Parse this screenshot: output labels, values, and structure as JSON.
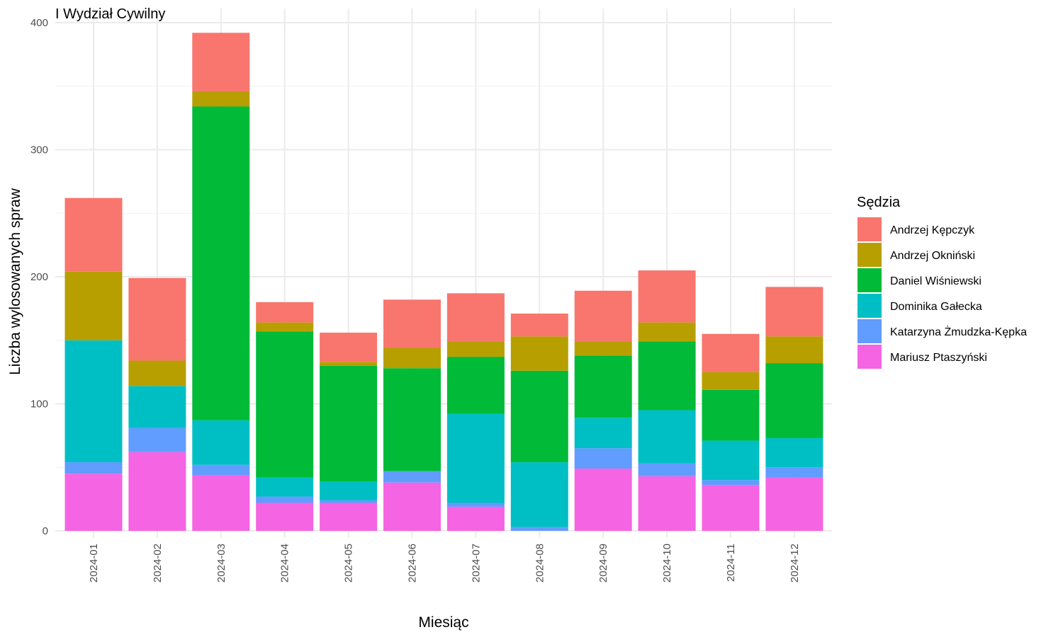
{
  "chart_data": {
    "type": "bar",
    "stacked": true,
    "title": "I Wydział Cywilny",
    "xlabel": "Miesiąc",
    "ylabel": "Liczba wylosowanych spraw",
    "ylim": [
      0,
      400
    ],
    "yticks": [
      0,
      100,
      200,
      300,
      400
    ],
    "grid": true,
    "legend_title": "Sędzia",
    "legend_position": "right",
    "categories": [
      "2024-01",
      "2024-02",
      "2024-03",
      "2024-04",
      "2024-05",
      "2024-06",
      "2024-07",
      "2024-08",
      "2024-09",
      "2024-10",
      "2024-11",
      "2024-12"
    ],
    "series": [
      {
        "name": "Mariusz Ptaszyński",
        "color": "#F564E3",
        "values": [
          45,
          62,
          44,
          22,
          22,
          38,
          19,
          0,
          49,
          43,
          36,
          42
        ]
      },
      {
        "name": "Katarzyna Żmudzka-Kępka",
        "color": "#619CFF",
        "values": [
          9,
          19,
          8,
          5,
          2,
          9,
          3,
          3,
          16,
          10,
          4,
          8
        ]
      },
      {
        "name": "Dominika Gałecka",
        "color": "#00BFC4",
        "values": [
          96,
          33,
          35,
          15,
          15,
          0,
          70,
          51,
          24,
          42,
          31,
          23
        ]
      },
      {
        "name": "Daniel Wiśniewski",
        "color": "#00BA38",
        "values": [
          0,
          0,
          247,
          115,
          91,
          81,
          45,
          72,
          49,
          54,
          40,
          59
        ]
      },
      {
        "name": "Andrzej Okniński",
        "color": "#B79F00",
        "values": [
          54,
          20,
          12,
          7,
          3,
          16,
          12,
          27,
          11,
          15,
          14,
          21
        ]
      },
      {
        "name": "Andrzej Kępczyk",
        "color": "#F8766D",
        "values": [
          58,
          65,
          46,
          16,
          23,
          38,
          38,
          18,
          40,
          41,
          30,
          39
        ]
      }
    ],
    "legend_order": [
      "Andrzej Kępczyk",
      "Andrzej Okniński",
      "Daniel Wiśniewski",
      "Dominika Gałecka",
      "Katarzyna Żmudzka-Kępka",
      "Mariusz Ptaszyński"
    ]
  }
}
